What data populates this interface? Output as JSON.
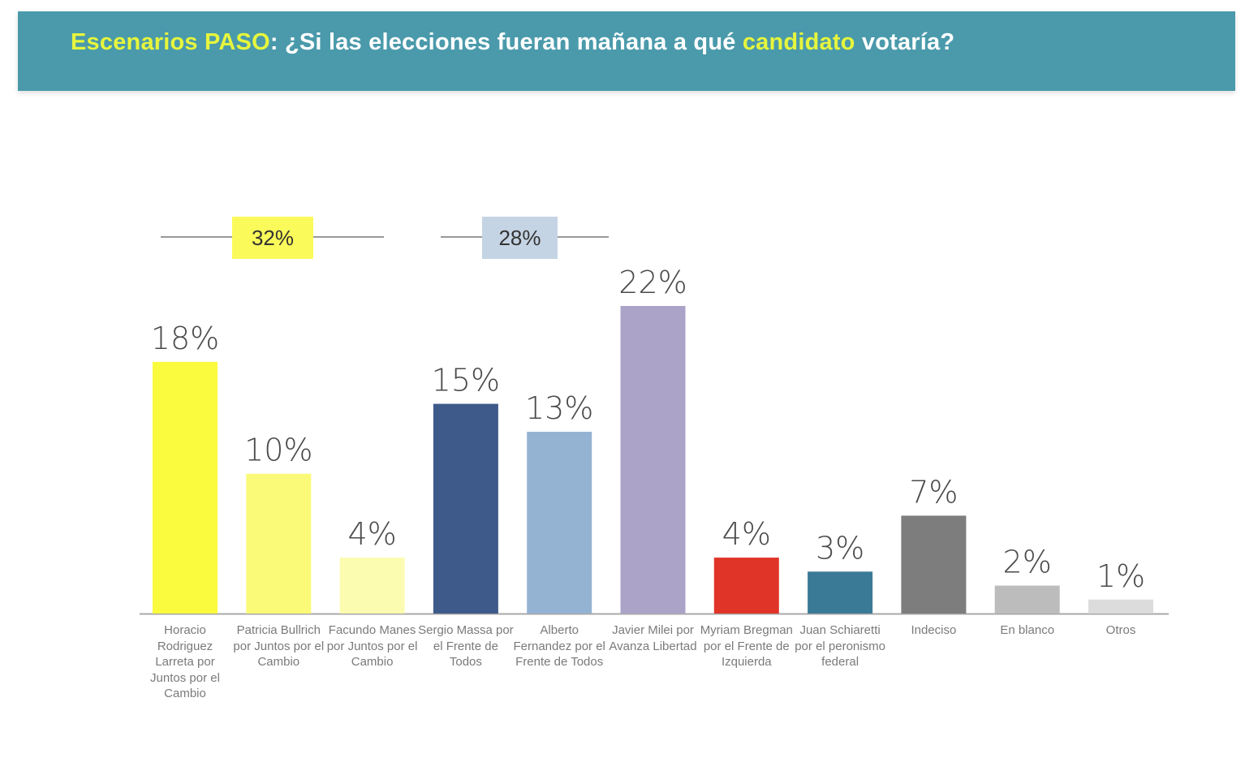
{
  "header": {
    "title_part1": "Escenarios PASO",
    "title_part2": ": ¿Si las elecciones fueran mañana a qué ",
    "title_part3": "candidato",
    "title_part4": " votaría?"
  },
  "groups": [
    {
      "label": "32%",
      "color": "#fafa5a"
    },
    {
      "label": "28%",
      "color": "#c5d4e4"
    }
  ],
  "chart_data": {
    "type": "bar",
    "title": "Escenarios PASO: ¿Si las elecciones fueran mañana a qué candidato votaría?",
    "ylim": [
      0,
      22
    ],
    "categories": [
      "Horacio Rodriguez Larreta por Juntos por el Cambio",
      "Patricia Bullrich por Juntos por el Cambio",
      "Facundo Manes por Juntos por el Cambio",
      "Sergio Massa por el Frente de Todos",
      "Alberto Fernandez por el Frente de Todos",
      "Javier Milei por Avanza Libertad",
      "Myriam Bregman por el Frente de Izquierda",
      "Juan Schiaretti por el peronismo federal",
      "Indeciso",
      "En blanco",
      "Otros"
    ],
    "values": [
      18,
      10,
      4,
      15,
      13,
      22,
      4,
      3,
      7,
      2,
      1
    ],
    "value_labels": [
      "18%",
      "10%",
      "4%",
      "15%",
      "13%",
      "22%",
      "4%",
      "3%",
      "7%",
      "2%",
      "1%"
    ],
    "colors": [
      "#fafa3e",
      "#fafa78",
      "#fcfcb0",
      "#3e5a8a",
      "#94b3d3",
      "#aca3c8",
      "#e03428",
      "#3b7a96",
      "#7d7d7d",
      "#bcbcbc",
      "#dcdcdc"
    ]
  }
}
